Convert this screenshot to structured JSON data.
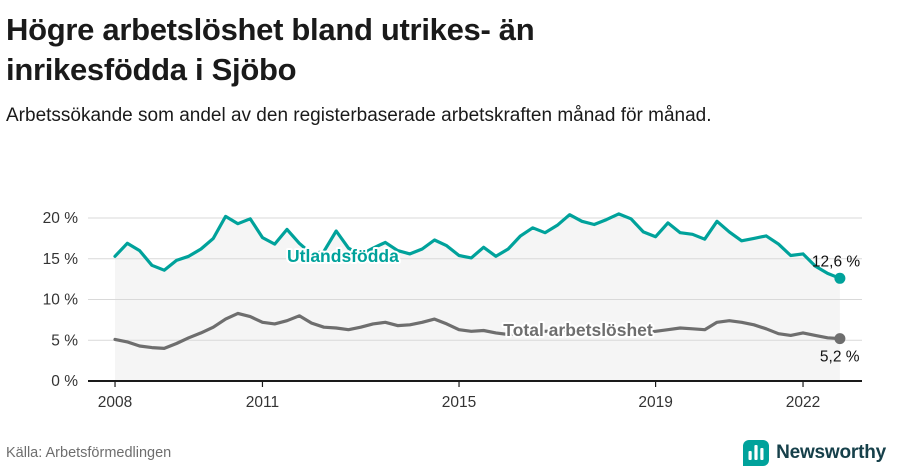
{
  "header": {
    "title": "Högre arbetslöshet bland utrikes- än inrikesfödda i Sjöbo",
    "subtitle": "Arbetssökande som andel av den registerbaserade arbetskraften månad för månad."
  },
  "footer": {
    "source": "Källa: Arbetsförmedlingen",
    "brand": "Newsworthy"
  },
  "colors": {
    "teal": "#00a29b",
    "gray": "#6e6e6e",
    "brand_teal": "#00a29b",
    "axis": "#1a1a1a"
  },
  "chart_data": {
    "type": "line",
    "title": "Högre arbetslöshet bland utrikes- än inrikesfödda i Sjöbo",
    "xlabel": "",
    "ylabel": "",
    "unit": "%",
    "grid": true,
    "legend": "inline-labels",
    "x_range": [
      2007.45,
      2023.2
    ],
    "y_range": [
      0,
      22
    ],
    "x_ticks": [
      2008,
      2011,
      2015,
      2019,
      2022
    ],
    "x_tick_labels": [
      "2008",
      "2011",
      "2015",
      "2019",
      "2022"
    ],
    "y_ticks": [
      0,
      5,
      10,
      15,
      20
    ],
    "y_tick_labels": [
      "0 %",
      "5 %",
      "10 %",
      "15 %",
      "20 %"
    ],
    "x_start": 2008.0,
    "x_step": 0.25,
    "series": [
      {
        "name": "Utlandsfödda",
        "color": "#00a29b",
        "end_label": "12,6 %",
        "end_value": 12.6,
        "label_at": [
          2011.5,
          14.6
        ],
        "end_label_offset": [
          -28,
          -12
        ],
        "values": [
          15.3,
          16.9,
          16.0,
          14.2,
          13.6,
          14.8,
          15.3,
          16.2,
          17.5,
          20.2,
          19.3,
          19.9,
          17.6,
          16.8,
          18.6,
          16.9,
          15.6,
          15.9,
          18.4,
          16.3,
          15.5,
          16.3,
          17.0,
          16.0,
          15.6,
          16.2,
          17.3,
          16.6,
          15.4,
          15.1,
          16.4,
          15.3,
          16.2,
          17.8,
          18.8,
          18.2,
          19.1,
          20.4,
          19.6,
          19.2,
          19.8,
          20.5,
          19.9,
          18.3,
          17.7,
          19.4,
          18.2,
          18.0,
          17.4,
          19.6,
          18.3,
          17.2,
          17.5,
          17.8,
          16.8,
          15.4,
          15.6,
          14.1,
          13.2,
          12.6
        ]
      },
      {
        "name": "Total arbetslöshet",
        "color": "#6e6e6e",
        "end_label": "5,2 %",
        "end_value": 5.2,
        "label_at": [
          2015.9,
          5.5
        ],
        "end_label_offset": [
          -20,
          23
        ],
        "values": [
          5.1,
          4.8,
          4.3,
          4.1,
          4.0,
          4.6,
          5.3,
          5.9,
          6.6,
          7.6,
          8.3,
          7.9,
          7.2,
          7.0,
          7.4,
          8.0,
          7.1,
          6.6,
          6.5,
          6.3,
          6.6,
          7.0,
          7.2,
          6.8,
          6.9,
          7.2,
          7.6,
          7.0,
          6.3,
          6.1,
          6.2,
          5.9,
          5.7,
          5.9,
          6.0,
          6.1,
          6.2,
          6.3,
          6.2,
          6.3,
          6.2,
          6.3,
          6.2,
          6.0,
          6.1,
          6.3,
          6.5,
          6.4,
          6.3,
          7.2,
          7.4,
          7.2,
          6.9,
          6.4,
          5.8,
          5.6,
          5.9,
          5.6,
          5.3,
          5.2
        ]
      }
    ]
  }
}
